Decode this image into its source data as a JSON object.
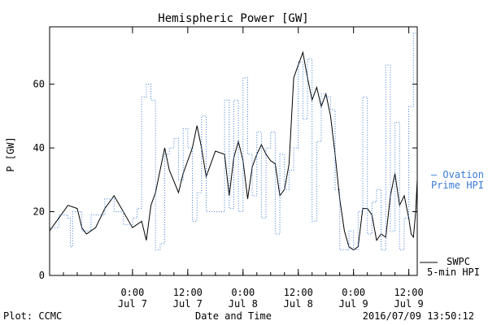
{
  "chart_data": {
    "type": "line",
    "title": "Hemispheric Power [GW]",
    "ylabel": "P [GW]",
    "xlabel": "Date and Time",
    "xlim": [
      "2016-07-06 06:00",
      "2016-07-09 13:50"
    ],
    "ylim": [
      0,
      78
    ],
    "yticks": [
      0,
      20,
      40,
      60
    ],
    "xticks": [
      {
        "t": "2016-07-07 00:00",
        "time": "0:00",
        "date": "Jul 7"
      },
      {
        "t": "2016-07-07 12:00",
        "time": "12:00",
        "date": "Jul 7"
      },
      {
        "t": "2016-07-08 00:00",
        "time": "0:00",
        "date": "Jul 8"
      },
      {
        "t": "2016-07-08 12:00",
        "time": "12:00",
        "date": "Jul 8"
      },
      {
        "t": "2016-07-09 00:00",
        "time": "0:00",
        "date": "Jul 9"
      },
      {
        "t": "2016-07-09 12:00",
        "time": "12:00",
        "date": "Jul 9"
      }
    ],
    "grid": false,
    "series": [
      {
        "name": "SWPC 5-min HPI",
        "color": "#000000",
        "style": "solid",
        "points": [
          [
            "2016-07-06 06:00",
            14
          ],
          [
            "2016-07-06 08:00",
            18
          ],
          [
            "2016-07-06 10:00",
            22
          ],
          [
            "2016-07-06 12:00",
            21
          ],
          [
            "2016-07-06 13:00",
            15
          ],
          [
            "2016-07-06 14:00",
            13
          ],
          [
            "2016-07-06 16:00",
            15
          ],
          [
            "2016-07-06 18:00",
            21
          ],
          [
            "2016-07-06 20:00",
            25
          ],
          [
            "2016-07-06 22:00",
            20
          ],
          [
            "2016-07-07 00:00",
            15
          ],
          [
            "2016-07-07 02:00",
            17
          ],
          [
            "2016-07-07 03:00",
            11
          ],
          [
            "2016-07-07 04:00",
            22
          ],
          [
            "2016-07-07 05:00",
            26
          ],
          [
            "2016-07-07 07:00",
            40
          ],
          [
            "2016-07-07 08:00",
            33
          ],
          [
            "2016-07-07 10:00",
            26
          ],
          [
            "2016-07-07 11:00",
            32
          ],
          [
            "2016-07-07 13:00",
            40
          ],
          [
            "2016-07-07 14:00",
            47
          ],
          [
            "2016-07-07 15:00",
            40
          ],
          [
            "2016-07-07 16:00",
            31
          ],
          [
            "2016-07-07 18:00",
            39
          ],
          [
            "2016-07-07 20:00",
            38
          ],
          [
            "2016-07-07 21:00",
            25
          ],
          [
            "2016-07-07 22:00",
            37
          ],
          [
            "2016-07-07 23:00",
            42
          ],
          [
            "2016-07-08 00:00",
            36
          ],
          [
            "2016-07-08 01:00",
            24
          ],
          [
            "2016-07-08 02:00",
            34
          ],
          [
            "2016-07-08 03:00",
            38
          ],
          [
            "2016-07-08 04:00",
            41
          ],
          [
            "2016-07-08 05:00",
            38
          ],
          [
            "2016-07-08 06:00",
            36
          ],
          [
            "2016-07-08 07:00",
            35
          ],
          [
            "2016-07-08 08:00",
            25
          ],
          [
            "2016-07-08 09:00",
            27
          ],
          [
            "2016-07-08 10:00",
            35
          ],
          [
            "2016-07-08 11:00",
            62
          ],
          [
            "2016-07-08 12:00",
            66
          ],
          [
            "2016-07-08 13:00",
            70
          ],
          [
            "2016-07-08 14:00",
            62
          ],
          [
            "2016-07-08 15:00",
            55
          ],
          [
            "2016-07-08 16:00",
            59
          ],
          [
            "2016-07-08 17:00",
            53
          ],
          [
            "2016-07-08 18:00",
            57
          ],
          [
            "2016-07-08 19:00",
            50
          ],
          [
            "2016-07-08 20:00",
            38
          ],
          [
            "2016-07-08 21:00",
            24
          ],
          [
            "2016-07-08 22:00",
            14
          ],
          [
            "2016-07-08 23:00",
            9
          ],
          [
            "2016-07-09 00:00",
            8
          ],
          [
            "2016-07-09 01:00",
            9
          ],
          [
            "2016-07-09 02:00",
            21
          ],
          [
            "2016-07-09 03:00",
            21
          ],
          [
            "2016-07-09 04:00",
            19
          ],
          [
            "2016-07-09 05:00",
            11
          ],
          [
            "2016-07-09 06:00",
            13
          ],
          [
            "2016-07-09 07:00",
            12
          ],
          [
            "2016-07-09 08:00",
            25
          ],
          [
            "2016-07-09 09:00",
            32
          ],
          [
            "2016-07-09 10:00",
            22
          ],
          [
            "2016-07-09 11:00",
            25
          ],
          [
            "2016-07-09 12:00",
            18
          ],
          [
            "2016-07-09 12:30",
            13
          ],
          [
            "2016-07-09 13:00",
            12
          ],
          [
            "2016-07-09 13:30",
            20
          ],
          [
            "2016-07-09 13:50",
            30
          ]
        ]
      },
      {
        "name": "Ovation Prime HPI",
        "color": "#3a7bd5",
        "style": "dotted-step",
        "points": [
          [
            "2016-07-06 06:00",
            15
          ],
          [
            "2016-07-06 08:00",
            19
          ],
          [
            "2016-07-06 10:00",
            18
          ],
          [
            "2016-07-06 10:30",
            9
          ],
          [
            "2016-07-06 11:00",
            20
          ],
          [
            "2016-07-06 13:00",
            14
          ],
          [
            "2016-07-06 15:00",
            19
          ],
          [
            "2016-07-06 18:00",
            24
          ],
          [
            "2016-07-06 20:00",
            20
          ],
          [
            "2016-07-06 22:00",
            16
          ],
          [
            "2016-07-07 00:00",
            18
          ],
          [
            "2016-07-07 01:00",
            21
          ],
          [
            "2016-07-07 02:00",
            56
          ],
          [
            "2016-07-07 03:00",
            60
          ],
          [
            "2016-07-07 04:00",
            55
          ],
          [
            "2016-07-07 05:00",
            8
          ],
          [
            "2016-07-07 06:00",
            10
          ],
          [
            "2016-07-07 07:00",
            38
          ],
          [
            "2016-07-07 08:00",
            40
          ],
          [
            "2016-07-07 09:00",
            43
          ],
          [
            "2016-07-07 10:00",
            30
          ],
          [
            "2016-07-07 11:00",
            46
          ],
          [
            "2016-07-07 12:00",
            40
          ],
          [
            "2016-07-07 13:00",
            17
          ],
          [
            "2016-07-07 14:00",
            26
          ],
          [
            "2016-07-07 15:00",
            50
          ],
          [
            "2016-07-07 16:00",
            20
          ],
          [
            "2016-07-07 20:00",
            55
          ],
          [
            "2016-07-07 21:00",
            21
          ],
          [
            "2016-07-07 22:00",
            55
          ],
          [
            "2016-07-07 23:00",
            20
          ],
          [
            "2016-07-08 00:00",
            62
          ],
          [
            "2016-07-08 01:00",
            38
          ],
          [
            "2016-07-08 02:00",
            25
          ],
          [
            "2016-07-08 03:00",
            45
          ],
          [
            "2016-07-08 04:00",
            18
          ],
          [
            "2016-07-08 05:00",
            40
          ],
          [
            "2016-07-08 06:00",
            45
          ],
          [
            "2016-07-08 07:00",
            13
          ],
          [
            "2016-07-08 08:00",
            38
          ],
          [
            "2016-07-08 09:00",
            27
          ],
          [
            "2016-07-08 10:00",
            33
          ],
          [
            "2016-07-08 11:00",
            40
          ],
          [
            "2016-07-08 12:00",
            67
          ],
          [
            "2016-07-08 13:00",
            49
          ],
          [
            "2016-07-08 14:00",
            68
          ],
          [
            "2016-07-08 15:00",
            17
          ],
          [
            "2016-07-08 16:00",
            42
          ],
          [
            "2016-07-08 17:00",
            57
          ],
          [
            "2016-07-08 18:00",
            56
          ],
          [
            "2016-07-08 19:00",
            52
          ],
          [
            "2016-07-08 20:00",
            27
          ],
          [
            "2016-07-08 21:00",
            8
          ],
          [
            "2016-07-08 23:00",
            14
          ],
          [
            "2016-07-09 00:00",
            8
          ],
          [
            "2016-07-09 01:00",
            20
          ],
          [
            "2016-07-09 02:00",
            56
          ],
          [
            "2016-07-09 03:00",
            13
          ],
          [
            "2016-07-09 04:00",
            23
          ],
          [
            "2016-07-09 05:00",
            27
          ],
          [
            "2016-07-09 06:00",
            8
          ],
          [
            "2016-07-09 07:00",
            66
          ],
          [
            "2016-07-09 08:00",
            14
          ],
          [
            "2016-07-09 09:00",
            48
          ],
          [
            "2016-07-09 10:00",
            8
          ],
          [
            "2016-07-09 11:00",
            18
          ],
          [
            "2016-07-09 12:00",
            53
          ],
          [
            "2016-07-09 13:00",
            76
          ]
        ]
      }
    ],
    "legend": [
      {
        "label": "Ovation Prime HPI",
        "line1": "— Ovation",
        "line2": "Prime HPI",
        "color": "#3a7bd5",
        "placement": "right"
      },
      {
        "label": "SWPC 5-min HPI",
        "line1": "SWPC",
        "line2": "5-min HPI",
        "color": "#000000",
        "placement": "right"
      }
    ],
    "footer": {
      "left": "Plot: CCMC",
      "right": "2016/07/09 13:50:12"
    }
  }
}
